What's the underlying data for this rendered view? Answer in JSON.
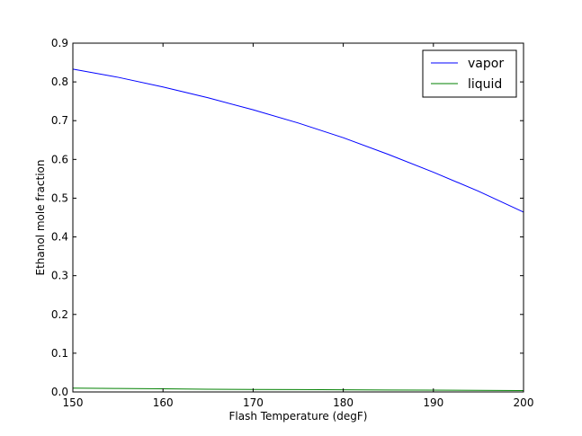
{
  "chart_data": {
    "type": "line",
    "title": "",
    "xlabel": "Flash Temperature (degF)",
    "ylabel": "Ethanol mole fraction",
    "xlim": [
      150,
      200
    ],
    "ylim": [
      0.0,
      0.9
    ],
    "grid": false,
    "legend_placement": "top-right",
    "x_ticks": [
      "150",
      "160",
      "170",
      "180",
      "190",
      "200"
    ],
    "y_ticks": [
      "0.0",
      "0.1",
      "0.2",
      "0.3",
      "0.4",
      "0.5",
      "0.6",
      "0.7",
      "0.8",
      "0.9"
    ],
    "x": [
      150,
      155,
      160,
      165,
      170,
      175,
      180,
      185,
      190,
      195,
      200
    ],
    "series": [
      {
        "name": "vapor",
        "color": "#0000ff",
        "values": [
          0.833,
          0.812,
          0.787,
          0.759,
          0.728,
          0.694,
          0.656,
          0.613,
          0.567,
          0.518,
          0.464
        ]
      },
      {
        "name": "liquid",
        "color": "#008000",
        "values": [
          0.01,
          0.009,
          0.008,
          0.007,
          0.0065,
          0.006,
          0.0055,
          0.005,
          0.0045,
          0.004,
          0.0035
        ]
      }
    ]
  }
}
